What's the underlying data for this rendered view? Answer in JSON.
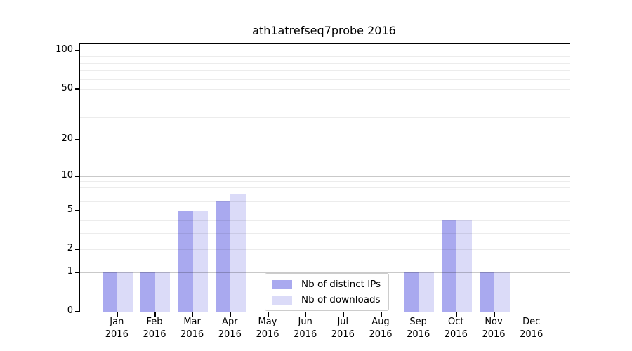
{
  "chart_data": {
    "type": "bar",
    "title": "ath1atrefseq7probe 2016",
    "categories": [
      "Jan",
      "Feb",
      "Mar",
      "Apr",
      "May",
      "Jun",
      "Jul",
      "Aug",
      "Sep",
      "Oct",
      "Nov",
      "Dec"
    ],
    "category_year": "2016",
    "series": [
      {
        "name": "Nb of distinct IPs",
        "color": "#a9a9ef",
        "values": [
          1,
          1,
          5,
          6,
          0,
          0,
          0,
          0,
          1,
          4,
          1,
          0
        ]
      },
      {
        "name": "Nb of downloads",
        "color": "#dbdbf8",
        "values": [
          1,
          1,
          5,
          7,
          0,
          0,
          0,
          0,
          1,
          4,
          1,
          0
        ]
      }
    ],
    "yscale": "log10(1+x)",
    "ylim": [
      0,
      113
    ],
    "yticks": [
      0,
      1,
      2,
      5,
      10,
      20,
      50,
      100
    ],
    "grid": {
      "major": [
        1,
        10,
        100
      ],
      "minor": [
        2,
        3,
        4,
        5,
        6,
        7,
        8,
        9,
        20,
        30,
        40,
        50,
        60,
        70,
        80,
        90
      ]
    },
    "legend_position": "lower center",
    "background": "#ffffff"
  }
}
